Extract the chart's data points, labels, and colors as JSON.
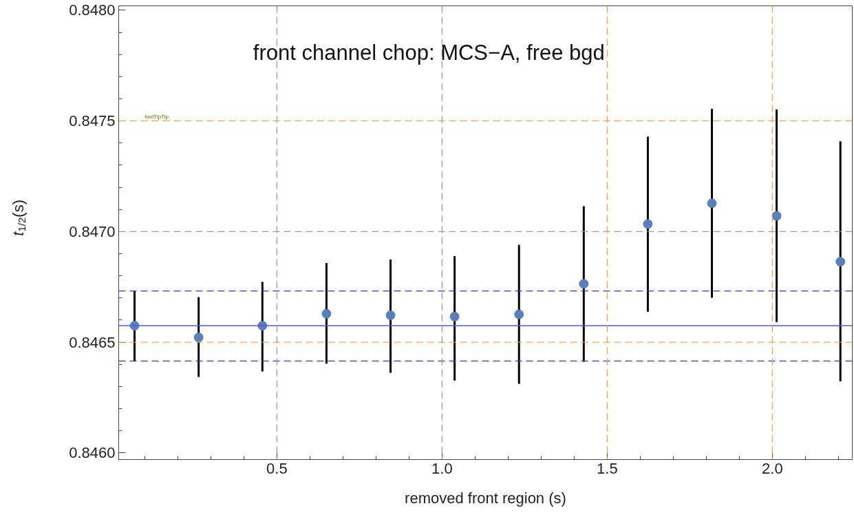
{
  "chart_data": {
    "type": "scatter",
    "title": "front channel chop: MCS−A, free bgd",
    "xlabel": "removed front region (s)",
    "ylabel": "t$_{1/2}$(s)",
    "x": [
      0.069,
      0.263,
      0.456,
      0.65,
      0.844,
      1.038,
      1.233,
      1.429,
      1.623,
      1.817,
      2.013,
      2.206
    ],
    "series": [
      {
        "color": "#5b7fba",
        "values": [
          0.846575,
          0.846522,
          0.846575,
          0.846629,
          0.846622,
          0.846616,
          0.846626,
          0.846764,
          0.847034,
          0.847128,
          0.847071,
          0.846864
        ],
        "errors": [
          [
            0.846415,
            0.846732
          ],
          [
            0.846343,
            0.846704
          ],
          [
            0.846368,
            0.846773
          ],
          [
            0.846403,
            0.846858
          ],
          [
            0.846362,
            0.846874
          ],
          [
            0.846327,
            0.846889
          ],
          [
            0.846312,
            0.84694
          ],
          [
            0.846412,
            0.847115
          ],
          [
            0.846638,
            0.847429
          ],
          [
            0.846701,
            0.847555
          ],
          [
            0.846591,
            0.847552
          ],
          [
            0.846324,
            0.847408
          ]
        ]
      }
    ],
    "marker": "circle",
    "xlim": [
      0.021,
      2.242
    ],
    "ylim": [
      0.84597,
      0.84802
    ],
    "xticks": [
      0.5,
      {
        "value": 1.0,
        "label": "1.0"
      },
      1.5,
      {
        "value": 2.0,
        "label": "2.0"
      }
    ],
    "yticks": [
      {
        "value": 0.846,
        "label": "0.8460"
      },
      0.8465,
      {
        "value": 0.847,
        "label": "0.8470"
      },
      0.8475,
      {
        "value": 0.848,
        "label": "0.8480"
      }
    ],
    "grid": false,
    "ref_lines": [
      {
        "axis": "y",
        "value": 0.846575,
        "color": "#5555ee",
        "line_style": "solid"
      },
      {
        "axis": "y",
        "value": 0.846732,
        "color": "#3333ee",
        "line_style": "dashed"
      },
      {
        "axis": "y",
        "value": 0.846415,
        "color": "#3333ee",
        "line_style": "dashed"
      },
      {
        "axis": "y",
        "value": 0.8475,
        "color": "#f5a142",
        "line_style": "dashed"
      },
      {
        "axis": "y",
        "value": 0.8465,
        "color": "#f5a142",
        "line_style": "dashed"
      },
      {
        "axis": "y",
        "value": 0.847,
        "color": "#9a9a9a",
        "line_style": "dashed"
      },
      {
        "axis": "x",
        "value": 0.5,
        "color": "#9a9a9a",
        "line_style": "dashed"
      },
      {
        "axis": "x",
        "value": 1.0,
        "color": "#9a9a9a",
        "line_style": "dashed"
      },
      {
        "axis": "x",
        "value": 1.5,
        "color": "#f5a142",
        "line_style": "dashed"
      },
      {
        "axis": "x",
        "value": 2.0,
        "color": "#f5a142",
        "line_style": "dashed"
      }
    ],
    "annotations": [
      {
        "text": "toolTipTip",
        "x": 0.1,
        "y": 0.8475
      }
    ]
  }
}
